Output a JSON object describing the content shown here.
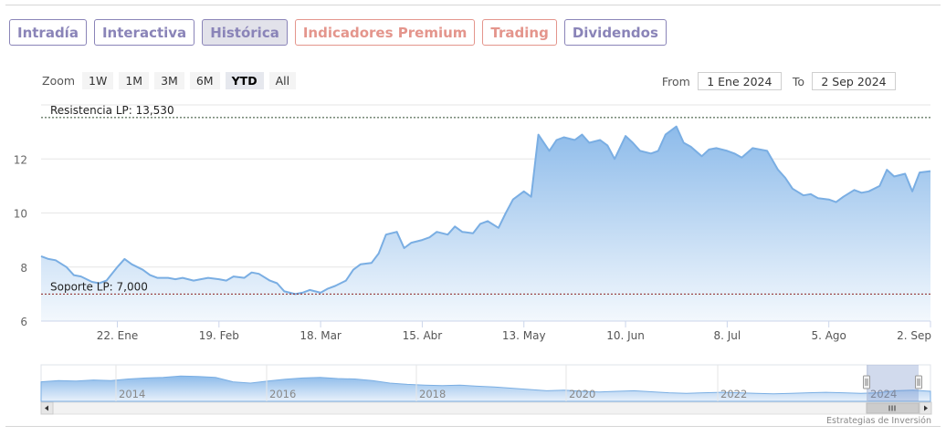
{
  "tabs": [
    {
      "label": "Intradía",
      "style": "purple"
    },
    {
      "label": "Interactiva",
      "style": "purple"
    },
    {
      "label": "Histórica",
      "style": "purple",
      "active": true
    },
    {
      "label": "Indicadores Premium",
      "style": "salmon"
    },
    {
      "label": "Trading",
      "style": "salmon"
    },
    {
      "label": "Dividendos",
      "style": "purple"
    }
  ],
  "zoom": {
    "label": "Zoom",
    "buttons": [
      "1W",
      "1M",
      "3M",
      "6M",
      "YTD",
      "All"
    ],
    "selected": "YTD"
  },
  "range": {
    "from_label": "From",
    "from_value": "1 Ene 2024",
    "to_label": "To",
    "to_value": "2 Sep 2024"
  },
  "colors": {
    "line": "#7aaee3",
    "fill_top": "#8dbbea",
    "fill_bottom": "#f3f8fd",
    "resistance": "#2f4a2f",
    "support": "#8b2020",
    "tab_purple": "#8a84b8",
    "tab_salmon": "#e4958c"
  },
  "chart_data": {
    "type": "area",
    "ylim": [
      6,
      14
    ],
    "yticks": [
      6,
      8,
      10,
      12
    ],
    "ytick_labels": [
      "6",
      "8",
      "10",
      "12"
    ],
    "xlim": [
      "2024-01-01",
      "2024-09-02"
    ],
    "xticks": [
      "2024-01-22",
      "2024-02-19",
      "2024-03-18",
      "2024-04-15",
      "2024-05-13",
      "2024-06-10",
      "2024-07-08",
      "2024-08-05",
      "2024-09-02"
    ],
    "xtick_labels": [
      "22. Ene",
      "19. Feb",
      "18. Mar",
      "15. Abr",
      "13. May",
      "10. Jun",
      "8. Jul",
      "5. Ago",
      "2. Sep"
    ],
    "resistance": {
      "label": "Resistencia LP: 13,530",
      "value": 13.53
    },
    "support": {
      "label": "Soporte LP: 7,000",
      "value": 7.0
    },
    "series": [
      {
        "x": [
          "2024-01-01",
          "2024-01-03",
          "2024-01-05",
          "2024-01-08",
          "2024-01-10",
          "2024-01-12",
          "2024-01-15",
          "2024-01-17",
          "2024-01-19",
          "2024-01-22",
          "2024-01-24",
          "2024-01-26",
          "2024-01-29",
          "2024-01-31",
          "2024-02-02",
          "2024-02-05",
          "2024-02-07",
          "2024-02-09",
          "2024-02-12",
          "2024-02-14",
          "2024-02-16",
          "2024-02-19",
          "2024-02-21",
          "2024-02-23",
          "2024-02-26",
          "2024-02-28",
          "2024-03-01",
          "2024-03-04",
          "2024-03-06",
          "2024-03-08",
          "2024-03-11",
          "2024-03-13",
          "2024-03-15",
          "2024-03-18",
          "2024-03-20",
          "2024-03-22",
          "2024-03-25",
          "2024-03-27",
          "2024-03-29",
          "2024-04-01",
          "2024-04-03",
          "2024-04-05",
          "2024-04-08",
          "2024-04-10",
          "2024-04-12",
          "2024-04-15",
          "2024-04-17",
          "2024-04-19",
          "2024-04-22",
          "2024-04-24",
          "2024-04-26",
          "2024-04-29",
          "2024-05-01",
          "2024-05-03",
          "2024-05-06",
          "2024-05-08",
          "2024-05-10",
          "2024-05-13",
          "2024-05-15",
          "2024-05-17",
          "2024-05-20",
          "2024-05-22",
          "2024-05-24",
          "2024-05-27",
          "2024-05-29",
          "2024-05-31",
          "2024-06-03",
          "2024-06-05",
          "2024-06-07",
          "2024-06-10",
          "2024-06-12",
          "2024-06-14",
          "2024-06-17",
          "2024-06-19",
          "2024-06-21",
          "2024-06-24",
          "2024-06-26",
          "2024-06-28",
          "2024-07-01",
          "2024-07-03",
          "2024-07-05",
          "2024-07-08",
          "2024-07-10",
          "2024-07-12",
          "2024-07-15",
          "2024-07-17",
          "2024-07-19",
          "2024-07-22",
          "2024-07-24",
          "2024-07-26",
          "2024-07-29",
          "2024-07-31",
          "2024-08-02",
          "2024-08-05",
          "2024-08-07",
          "2024-08-09",
          "2024-08-12",
          "2024-08-14",
          "2024-08-16",
          "2024-08-19",
          "2024-08-21",
          "2024-08-23",
          "2024-08-26",
          "2024-08-28",
          "2024-08-30",
          "2024-09-02"
        ],
        "y": [
          8.4,
          8.3,
          8.25,
          8.0,
          7.7,
          7.65,
          7.45,
          7.4,
          7.5,
          8.0,
          8.3,
          8.1,
          7.9,
          7.7,
          7.6,
          7.6,
          7.55,
          7.6,
          7.5,
          7.55,
          7.6,
          7.55,
          7.5,
          7.65,
          7.6,
          7.8,
          7.75,
          7.5,
          7.4,
          7.1,
          7.0,
          7.05,
          7.15,
          7.05,
          7.2,
          7.3,
          7.5,
          7.9,
          8.1,
          8.15,
          8.5,
          9.2,
          9.3,
          8.7,
          8.9,
          9.0,
          9.1,
          9.3,
          9.2,
          9.5,
          9.3,
          9.25,
          9.6,
          9.7,
          9.45,
          10.0,
          10.5,
          10.8,
          10.6,
          12.9,
          12.3,
          12.7,
          12.8,
          12.7,
          12.9,
          12.6,
          12.7,
          12.5,
          12.0,
          12.85,
          12.6,
          12.3,
          12.2,
          12.3,
          12.9,
          13.2,
          12.6,
          12.45,
          12.1,
          12.35,
          12.4,
          12.3,
          12.2,
          12.05,
          12.4,
          12.35,
          12.3,
          11.6,
          11.3,
          10.9,
          10.65,
          10.7,
          10.55,
          10.5,
          10.4,
          10.6,
          10.85,
          10.75,
          10.8,
          11.0,
          11.6,
          11.35,
          11.45,
          10.8,
          11.5,
          11.55
        ]
      }
    ],
    "navigator": {
      "xtick_labels": [
        "2014",
        "2016",
        "2018",
        "2020",
        "2022",
        "2024"
      ]
    }
  },
  "credit": "Estrategias de Inversión"
}
